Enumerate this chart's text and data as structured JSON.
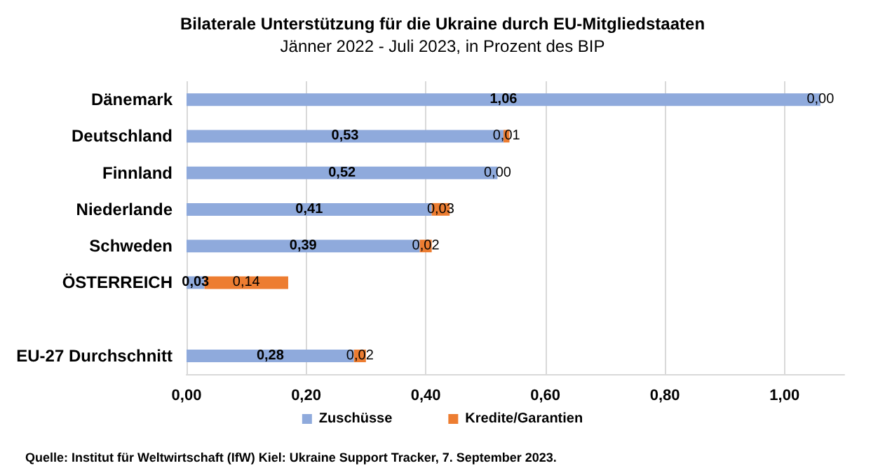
{
  "chart_data": {
    "type": "bar",
    "orientation": "horizontal",
    "stacked": true,
    "title": "Bilaterale Unterstützung für die Ukraine durch EU-Mitgliedstaaten",
    "subtitle": "Jänner 2022 - Juli 2023, in Prozent des BIP",
    "categories": [
      "Dänemark",
      "Deutschland",
      "Finnland",
      "Niederlande",
      "Schweden",
      "ÖSTERREICH",
      null,
      "EU-27 Durchschnitt"
    ],
    "series": [
      {
        "name": "Zuschüsse",
        "color": "#8faadc",
        "values": [
          1.06,
          0.53,
          0.52,
          0.41,
          0.39,
          0.03,
          null,
          0.28
        ],
        "value_labels": [
          "1,06",
          "0,53",
          "0,52",
          "0,41",
          "0,39",
          "0,03",
          null,
          "0,28"
        ]
      },
      {
        "name": "Kredite/Garantien",
        "color": "#ed7d31",
        "values": [
          0,
          0.01,
          0,
          0.03,
          0.02,
          0.14,
          null,
          0.02
        ],
        "value_labels": [
          "0,00",
          "0,01",
          "0,00",
          "0,03",
          "0,02",
          "0,14",
          null,
          "0,02"
        ]
      }
    ],
    "xlim": [
      0,
      1.1
    ],
    "xticks": [
      {
        "value": 0,
        "label": "0,00"
      },
      {
        "value": 0.2,
        "label": "0,20"
      },
      {
        "value": 0.4,
        "label": "0,40"
      },
      {
        "value": 0.6,
        "label": "0,60"
      },
      {
        "value": 0.8,
        "label": "0,80"
      },
      {
        "value": 1,
        "label": "1,00"
      }
    ],
    "grid": "x",
    "legend": "bottom",
    "annotations": [
      "Quelle: Institut für Weltwirtschaft (IfW) Kiel: Ukraine Support Tracker, 7. September 2023."
    ]
  }
}
